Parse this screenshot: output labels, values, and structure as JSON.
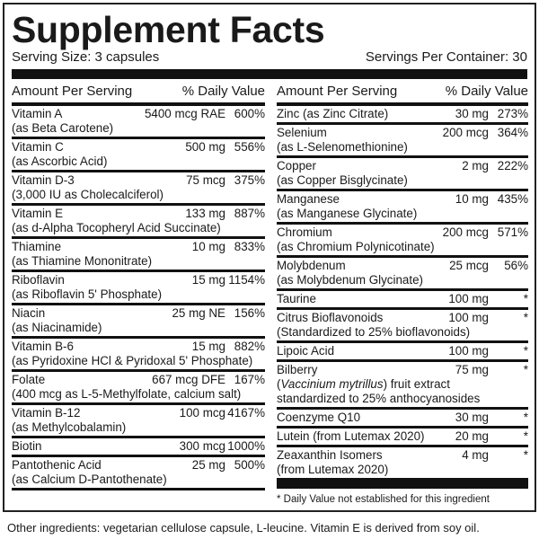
{
  "title": "Supplement Facts",
  "serving_size": "Serving Size: 3 capsules",
  "servings_per_container": "Servings Per Container: 30",
  "header": {
    "amount": "Amount Per Serving",
    "dv": "% Daily Value"
  },
  "left_rows": [
    {
      "name": "Vitamin A",
      "amount": "5400 mcg RAE",
      "dv": "600%",
      "sub": [
        "(as Beta Carotene)"
      ]
    },
    {
      "name": "Vitamin C",
      "amount": "500 mg",
      "dv": "556%",
      "sub": [
        "(as Ascorbic Acid)"
      ]
    },
    {
      "name": "Vitamin D-3",
      "amount": "75 mcg",
      "dv": "375%",
      "sub": [
        "(3,000 IU as Cholecalciferol)"
      ]
    },
    {
      "name": "Vitamin E",
      "amount": "133 mg",
      "dv": "887%",
      "sub": [
        "(as d-Alpha Tocopheryl Acid Succinate)"
      ]
    },
    {
      "name": "Thiamine",
      "amount": "10 mg",
      "dv": "833%",
      "sub": [
        "(as Thiamine Mononitrate)"
      ]
    },
    {
      "name": "Riboflavin",
      "amount": "15 mg",
      "dv": "1154%",
      "sub": [
        "(as Riboflavin 5' Phosphate)"
      ]
    },
    {
      "name": "Niacin",
      "amount": "25 mg NE",
      "dv": "156%",
      "sub": [
        "(as Niacinamide)"
      ]
    },
    {
      "name": "Vitamin B-6",
      "amount": "15 mg",
      "dv": "882%",
      "sub": [
        "(as Pyridoxine HCl & Pyridoxal 5' Phosphate)"
      ]
    },
    {
      "name": "Folate",
      "amount": "667 mcg DFE",
      "dv": "167%",
      "sub": [
        "(400 mcg as L-5-Methylfolate, calcium salt)"
      ]
    },
    {
      "name": "Vitamin B-12",
      "amount": "100 mcg",
      "dv": "4167%",
      "sub": [
        "(as Methylcobalamin)"
      ]
    },
    {
      "name": "Biotin",
      "amount": "300 mcg",
      "dv": "1000%",
      "sub": []
    },
    {
      "name": "Pantothenic Acid",
      "amount": "25 mg",
      "dv": "500%",
      "sub": [
        "(as Calcium D-Pantothenate)"
      ]
    }
  ],
  "right_rows": [
    {
      "name": "Zinc (as Zinc Citrate)",
      "amount": "30 mg",
      "dv": "273%",
      "sub": []
    },
    {
      "name": "Selenium",
      "amount": "200 mcg",
      "dv": "364%",
      "sub": [
        "(as L-Selenomethionine)"
      ]
    },
    {
      "name": "Copper",
      "amount": "2 mg",
      "dv": "222%",
      "sub": [
        "(as Copper Bisglycinate)"
      ]
    },
    {
      "name": "Manganese",
      "amount": "10 mg",
      "dv": "435%",
      "sub": [
        "(as Manganese Glycinate)"
      ]
    },
    {
      "name": "Chromium",
      "amount": "200 mcg",
      "dv": "571%",
      "sub": [
        "(as Chromium Polynicotinate)"
      ]
    },
    {
      "name": "Molybdenum",
      "amount": "25 mcg",
      "dv": "56%",
      "sub": [
        "(as Molybdenum Glycinate)"
      ]
    },
    {
      "name": "Taurine",
      "amount": "100 mg",
      "dv": "*",
      "sub": []
    },
    {
      "name": "Citrus Bioflavonoids",
      "amount": "100 mg",
      "dv": "*",
      "sub": [
        "(Standardized to 25% bioflavonoids)"
      ]
    },
    {
      "name": "Lipoic Acid",
      "amount": "100 mg",
      "dv": "*",
      "sub": []
    },
    {
      "name": "Bilberry",
      "amount": "75 mg",
      "dv": "*",
      "sub": [],
      "italic_sub": {
        "open": "(",
        "latin": "Vaccinium mytrillus",
        "rest": ") fruit extract"
      },
      "sub2": "standardized to 25% anthocyanosides"
    },
    {
      "name": "Coenzyme Q10",
      "amount": "30 mg",
      "dv": "*",
      "sub": []
    },
    {
      "name": "Lutein (from Lutemax 2020)",
      "amount": "20 mg",
      "dv": "*",
      "sub": []
    },
    {
      "name": "Zeaxanthin Isomers",
      "amount": "4 mg",
      "dv": "*",
      "sub": [
        "(from Lutemax 2020)"
      ]
    }
  ],
  "footnote": "* Daily Value not established for this ingredient",
  "other_ingredients": "Other ingredients: vegetarian cellulose capsule, L-leucine. Vitamin E is derived from soy oil."
}
